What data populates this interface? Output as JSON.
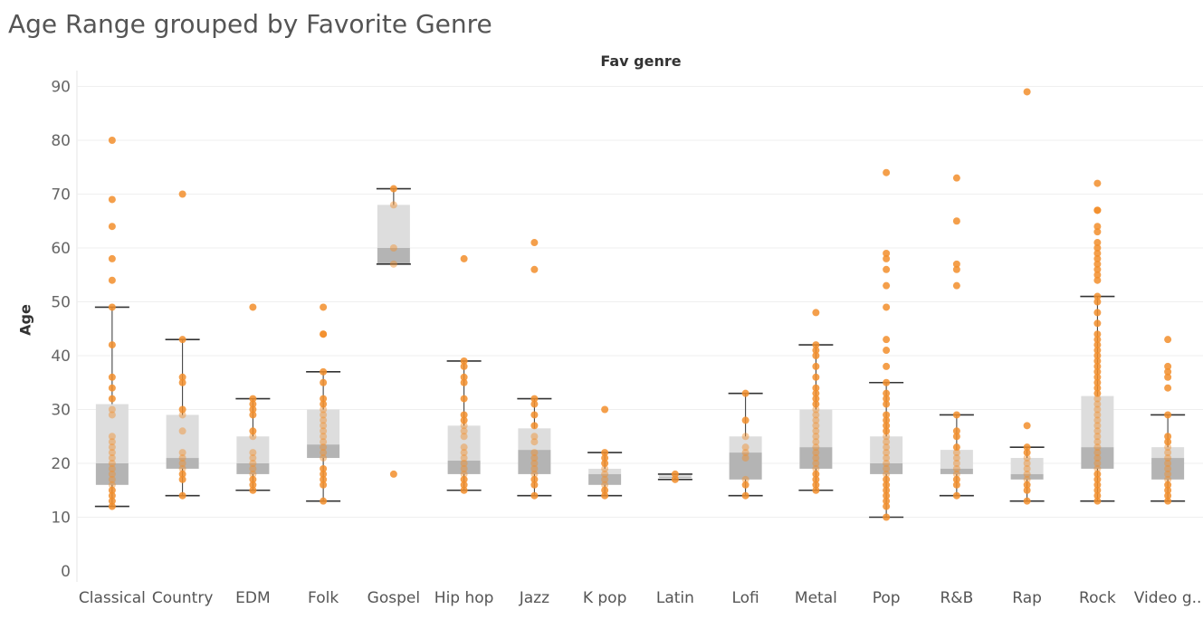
{
  "chart_data": {
    "type": "box",
    "title": "Age Range grouped by Favorite Genre",
    "column_header": "Fav genre",
    "ylabel": "Age",
    "ylim": [
      0,
      93
    ],
    "y_ticks": [
      0,
      10,
      20,
      30,
      40,
      50,
      60,
      70,
      80,
      90
    ],
    "grid": true,
    "point_color": "#F28E2B",
    "box_upper_color": "#DDDDDD",
    "box_lower_color": "#B4B4B4",
    "whisker_color": "#333333",
    "categories": [
      "Classical",
      "Country",
      "EDM",
      "Folk",
      "Gospel",
      "Hip hop",
      "Jazz",
      "K pop",
      "Latin",
      "Lofi",
      "Metal",
      "Pop",
      "R&B",
      "Rap",
      "Rock",
      "Video g.."
    ],
    "boxes": [
      {
        "category": "Classical",
        "lower_whisker": 12,
        "q1": 16,
        "median": 20,
        "q3": 31,
        "upper_whisker": 49,
        "points": [
          80,
          69,
          64,
          58,
          54,
          49,
          42,
          36,
          34,
          32,
          30,
          29,
          25,
          24,
          23,
          22,
          21,
          20,
          19,
          18,
          17,
          16,
          15,
          14,
          13,
          12
        ]
      },
      {
        "category": "Country",
        "lower_whisker": 14,
        "q1": 19,
        "median": 21,
        "q3": 29,
        "upper_whisker": 43,
        "points": [
          70,
          43,
          36,
          35,
          30,
          29,
          26,
          22,
          21,
          20,
          19,
          18,
          17,
          14
        ]
      },
      {
        "category": "EDM",
        "lower_whisker": 15,
        "q1": 18,
        "median": 20,
        "q3": 25,
        "upper_whisker": 32,
        "points": [
          49,
          32,
          31,
          30,
          29,
          26,
          25,
          22,
          21,
          20,
          19,
          18,
          17,
          16,
          15
        ]
      },
      {
        "category": "Folk",
        "lower_whisker": 13,
        "q1": 21,
        "median": 23.5,
        "q3": 30,
        "upper_whisker": 37,
        "points": [
          49,
          44,
          44,
          37,
          35,
          32,
          31,
          30,
          29,
          28,
          27,
          26,
          25,
          24,
          23,
          22,
          21,
          19,
          18,
          17,
          16,
          13
        ]
      },
      {
        "category": "Gospel",
        "lower_whisker": 57,
        "q1": 57,
        "median": 60,
        "q3": 68,
        "upper_whisker": 71,
        "points": [
          71,
          68,
          60,
          57,
          18
        ]
      },
      {
        "category": "Hip hop",
        "lower_whisker": 15,
        "q1": 18,
        "median": 20.5,
        "q3": 27,
        "upper_whisker": 39,
        "points": [
          58,
          39,
          38,
          36,
          35,
          32,
          29,
          28,
          27,
          26,
          25,
          23,
          22,
          21,
          20,
          19,
          18,
          17,
          16,
          15
        ]
      },
      {
        "category": "Jazz",
        "lower_whisker": 14,
        "q1": 18,
        "median": 22.5,
        "q3": 26.5,
        "upper_whisker": 32,
        "points": [
          61,
          56,
          32,
          31,
          29,
          27,
          25,
          24,
          22,
          21,
          20,
          19,
          18,
          17,
          16,
          14
        ]
      },
      {
        "category": "K pop",
        "lower_whisker": 14,
        "q1": 16,
        "median": 18,
        "q3": 19,
        "upper_whisker": 22,
        "points": [
          30,
          22,
          21,
          20,
          19,
          18,
          17,
          16,
          15,
          14
        ]
      },
      {
        "category": "Latin",
        "lower_whisker": 17,
        "q1": 17.3,
        "median": 17.5,
        "q3": 17.8,
        "upper_whisker": 18,
        "points": [
          18,
          17
        ]
      },
      {
        "category": "Lofi",
        "lower_whisker": 14,
        "q1": 17,
        "median": 22,
        "q3": 25,
        "upper_whisker": 33,
        "points": [
          33,
          28,
          25,
          23,
          22,
          21,
          17,
          16,
          14
        ]
      },
      {
        "category": "Metal",
        "lower_whisker": 15,
        "q1": 19,
        "median": 23,
        "q3": 30,
        "upper_whisker": 42,
        "points": [
          48,
          42,
          41,
          40,
          38,
          36,
          34,
          33,
          32,
          31,
          30,
          29,
          28,
          27,
          26,
          25,
          24,
          23,
          22,
          21,
          20,
          19,
          18,
          17,
          16,
          15
        ]
      },
      {
        "category": "Pop",
        "lower_whisker": 10,
        "q1": 18,
        "median": 20,
        "q3": 25,
        "upper_whisker": 35,
        "points": [
          74,
          59,
          58,
          56,
          53,
          49,
          43,
          41,
          38,
          35,
          33,
          32,
          31,
          29,
          28,
          27,
          26,
          25,
          24,
          23,
          22,
          21,
          20,
          19,
          18,
          17,
          16,
          15,
          14,
          13,
          12,
          10
        ]
      },
      {
        "category": "R&B",
        "lower_whisker": 14,
        "q1": 18,
        "median": 19,
        "q3": 22.5,
        "upper_whisker": 29,
        "points": [
          73,
          65,
          57,
          56,
          53,
          29,
          26,
          25,
          23,
          22,
          21,
          20,
          19,
          18,
          17,
          16,
          14
        ]
      },
      {
        "category": "Rap",
        "lower_whisker": 13,
        "q1": 17,
        "median": 18,
        "q3": 21,
        "upper_whisker": 23,
        "points": [
          89,
          27,
          23,
          22,
          21,
          20,
          19,
          18,
          17,
          16,
          15,
          13
        ]
      },
      {
        "category": "Rock",
        "lower_whisker": 13,
        "q1": 19,
        "median": 23,
        "q3": 32.5,
        "upper_whisker": 51,
        "points": [
          72,
          67,
          67,
          64,
          63,
          61,
          60,
          59,
          58,
          57,
          56,
          55,
          54,
          51,
          50,
          48,
          46,
          44,
          43,
          42,
          41,
          40,
          39,
          38,
          37,
          36,
          35,
          34,
          33,
          32,
          31,
          30,
          29,
          28,
          27,
          26,
          25,
          24,
          23,
          22,
          21,
          20,
          19,
          18,
          17,
          16,
          15,
          14,
          13
        ]
      },
      {
        "category": "Video g..",
        "lower_whisker": 13,
        "q1": 17,
        "median": 21,
        "q3": 23,
        "upper_whisker": 29,
        "points": [
          43,
          38,
          37,
          36,
          34,
          29,
          25,
          24,
          23,
          22,
          21,
          20,
          19,
          18,
          17,
          16,
          15,
          14,
          13
        ]
      }
    ]
  }
}
